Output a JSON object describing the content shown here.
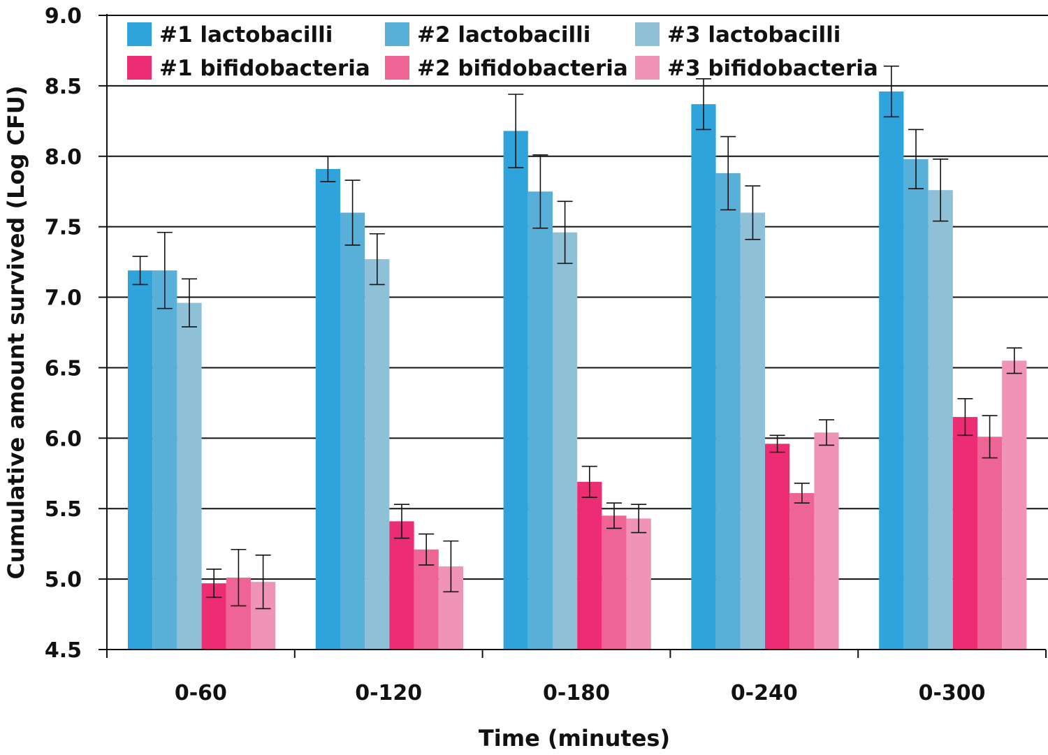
{
  "chart_data": {
    "type": "bar",
    "title": "",
    "xlabel": "Time (minutes)",
    "ylabel": "Cumulative amount survived (Log CFU)",
    "ylim": [
      4.5,
      9.0
    ],
    "yticks": [
      "4.5",
      "5.0",
      "5.5",
      "6.0",
      "6.5",
      "7.0",
      "7.5",
      "8.0",
      "8.5",
      "9.0"
    ],
    "grid": true,
    "legend_position": "top",
    "categories": [
      "0-60",
      "0-120",
      "0-180",
      "0-240",
      "0-300"
    ],
    "series": [
      {
        "name": "#1 lactobacilli",
        "color": "#2fa3db",
        "values": [
          7.19,
          7.91,
          8.18,
          8.37,
          8.46
        ],
        "errors": [
          0.1,
          0.09,
          0.26,
          0.18,
          0.18
        ]
      },
      {
        "name": "#2 lactobacilli",
        "color": "#58afd8",
        "values": [
          7.19,
          7.6,
          7.75,
          7.88,
          7.98
        ],
        "errors": [
          0.27,
          0.23,
          0.26,
          0.26,
          0.21
        ]
      },
      {
        "name": "#3 lactobacilli",
        "color": "#8ec0d8",
        "values": [
          6.96,
          7.27,
          7.46,
          7.6,
          7.76
        ],
        "errors": [
          0.17,
          0.18,
          0.22,
          0.19,
          0.22
        ]
      },
      {
        "name": "#1 bifidobacteria",
        "color": "#ec2d74",
        "values": [
          4.97,
          5.41,
          5.69,
          5.96,
          6.15
        ],
        "errors": [
          0.1,
          0.12,
          0.11,
          0.06,
          0.13
        ]
      },
      {
        "name": "#2 bifidobacteria",
        "color": "#ee6494",
        "values": [
          5.01,
          5.21,
          5.45,
          5.61,
          6.01
        ],
        "errors": [
          0.2,
          0.11,
          0.09,
          0.07,
          0.15
        ]
      },
      {
        "name": "#3 bifidobacteria",
        "color": "#ef94b6",
        "values": [
          4.98,
          5.09,
          5.43,
          6.04,
          6.55
        ],
        "errors": [
          0.19,
          0.18,
          0.1,
          0.09,
          0.09
        ]
      }
    ]
  }
}
